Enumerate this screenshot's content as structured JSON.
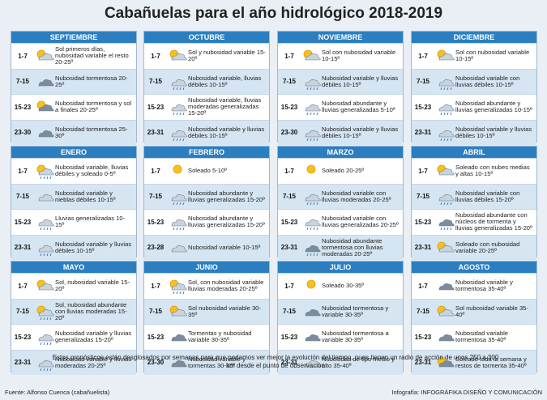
{
  "header": {
    "title": "Cabañuelas para el año hidrológico 2018-2019"
  },
  "months": [
    {
      "name": "SEPTIEMBRE",
      "rows": [
        [
          "1-7",
          "Sol primeros días, nubosidad variable el resto 20-25º"
        ],
        [
          "7-15",
          "Nubosidad tormentosa 20-25º"
        ],
        [
          "15-23",
          "Nubosidad tormentosa y sol a finales 20-25º"
        ],
        [
          "23-30",
          "Nubosidad tormentosa 25-30º"
        ]
      ]
    },
    {
      "name": "OCTUBRE",
      "rows": [
        [
          "1-7",
          "Sol y nubosidad variable 15-20º"
        ],
        [
          "7-15",
          "Nubosidad variable, lluvias débiles 10-15º"
        ],
        [
          "15-23",
          "Nubosidad variable, lluvias moderadas generalizadas 15-20º"
        ],
        [
          "23-31",
          "Nubosidad variable y lluvias débiles 10-15º"
        ]
      ]
    },
    {
      "name": "NOVIEMBRE",
      "rows": [
        [
          "1-7",
          "Sol con nubosidad variable 10-15º"
        ],
        [
          "7-15",
          "Nubosidad variable y lluvias débiles 10-15º"
        ],
        [
          "15-23",
          "Nubosidad abundante y lluvias generalizadas 5-10º"
        ],
        [
          "23-30",
          "Nubosidad variable y lluvias débiles 10-15º"
        ]
      ]
    },
    {
      "name": "DICIEMBRE",
      "rows": [
        [
          "1-7",
          "Sol con nubosidad variable 10-15º"
        ],
        [
          "7-15",
          "Nubosidad variable con lluvias débiles 10-15º"
        ],
        [
          "15-23",
          "Nubosidad abundante y lluvias generalizadas 10-15º"
        ],
        [
          "23-31",
          "Nubosidad variable y lluvias débiles 10-15º"
        ]
      ]
    },
    {
      "name": "ENERO",
      "rows": [
        [
          "1-7",
          "Nubosidad variable, lluvias débiles y soleado 0-5º"
        ],
        [
          "7-15",
          "Nubosidad variable y nieblas débiles 10-15º"
        ],
        [
          "15-23",
          "Lluvias generalizadas 10-15º"
        ],
        [
          "23-31",
          "Nubosidad variable y lluvias débiles 10-15º"
        ]
      ]
    },
    {
      "name": "FEBRERO",
      "rows": [
        [
          "1-7",
          "Soleado 5-10º"
        ],
        [
          "7-15",
          "Nubosidad abundante y lluvias generalizadas 15-20º"
        ],
        [
          "15-23",
          "Nubosidad abundante y lluvias generalizadas 15-20º"
        ],
        [
          "23-28",
          "Nubosidad variable 10-15º"
        ]
      ]
    },
    {
      "name": "MARZO",
      "rows": [
        [
          "1-7",
          "Soleado 20-25º"
        ],
        [
          "7-15",
          "Nubosidad variable con lluvias moderadas 20-25º"
        ],
        [
          "15-23",
          "Nubosidad variable con lluvias generalizadas 20-25º"
        ],
        [
          "23-31",
          "Nubosidad abundante tormentosa con lluvias moderadas 20-25º"
        ]
      ]
    },
    {
      "name": "ABRIL",
      "rows": [
        [
          "1-7",
          "Soleado con nubes medias y altas 10-15º"
        ],
        [
          "7-15",
          "Nubosidad variable con lluvias débiles 15-20º"
        ],
        [
          "15-23",
          "Nubosidad abundante con núcleos de tormenta y lluvias generalizadas 15-20º"
        ],
        [
          "23-31",
          "Soleado con nubosidad variable 20-25º"
        ]
      ]
    },
    {
      "name": "MAYO",
      "rows": [
        [
          "1-7",
          "Sol, nubosidad variable 15-20º"
        ],
        [
          "7-15",
          "Sol, nubosidad abundante con lluvias moderadas 15-20º"
        ],
        [
          "15-23",
          "Nubosidad variable y lluvias generalizadas 15-20º"
        ],
        [
          "23-31",
          "Nubosidad variable y lluvias moderadas 20-25º"
        ]
      ]
    },
    {
      "name": "JUNIO",
      "rows": [
        [
          "1-7",
          "Sol, con nubosidad variable lluvias moderadas 20-25º"
        ],
        [
          "7-15",
          "Sol nubosidad variable 30-35º"
        ],
        [
          "15-23",
          "Tormentas y nubosidad variable 30-35º"
        ],
        [
          "23-30",
          "Nubosidad variable y tormentas 30-35º"
        ]
      ]
    },
    {
      "name": "JULIO",
      "rows": [
        [
          "1-7",
          "Soleado 30-35º"
        ],
        [
          "7-15",
          "Nubosidad tormentosa y variable 30-35º"
        ],
        [
          "15-23",
          "Nubosidad tormentosa a variable 30-35º"
        ],
        [
          "23-31",
          "Nubosidad de tipo medio y alto 35-40º"
        ]
      ]
    },
    {
      "name": "AGOSTO",
      "rows": [
        [
          "1-7",
          "Nubosidad variable y tormentosa 35-40º"
        ],
        [
          "7-15",
          "Sol nubosidad variable 35-40º"
        ],
        [
          "15-23",
          "Nubosidad variable tormentosa 35-40º"
        ],
        [
          "23-31",
          "Soleado toda la semana y restos de tormenta 35-40º"
        ]
      ]
    }
  ],
  "footer": {
    "note": "Estos pronósticos están desglosados por semanas para que podamos ver mejor la evolución del tiempo, pues tienen un radio de acción de unos 250 a 300 km desde el punto de observación",
    "source": "Fuente: Alfonso Cuenca (cabañuelista)",
    "credit": "Infografía: INFOGRÁFIKA DISEÑO Y COMUNICACIÓN"
  }
}
